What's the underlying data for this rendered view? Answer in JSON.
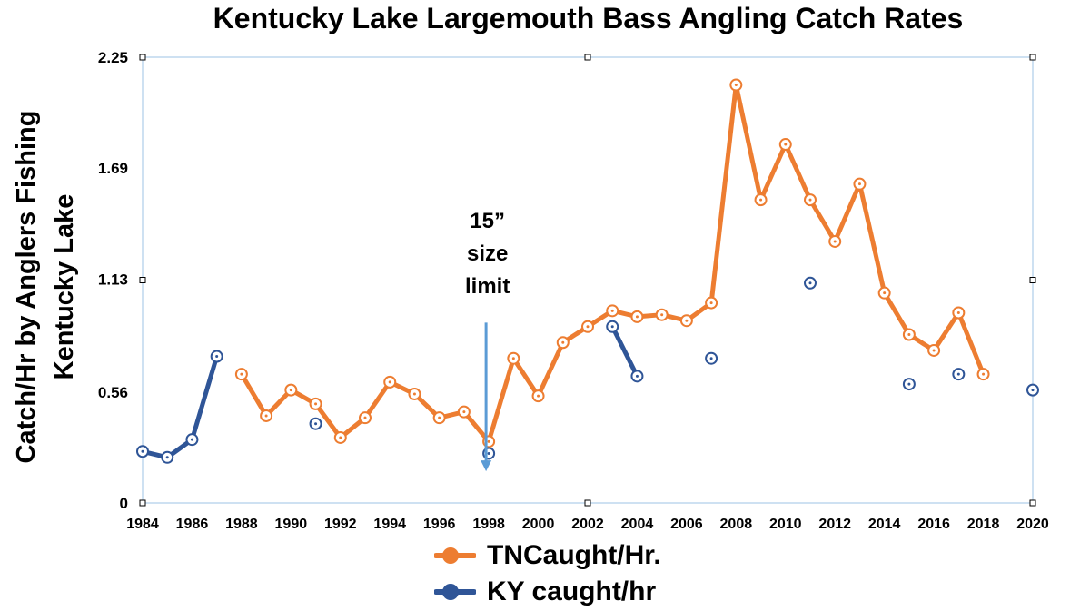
{
  "chart_data": {
    "type": "line",
    "title": "Kentucky Lake Largemouth Bass Angling Catch Rates",
    "ylabel_lines": [
      "Catch/Hr by Anglers Fishing",
      "Kentucky Lake"
    ],
    "xlabel": "",
    "xlim": [
      1984,
      2020
    ],
    "ylim": [
      0,
      2.25
    ],
    "yticks": [
      "0",
      "0.56",
      "1.13",
      "1.69",
      "2.25"
    ],
    "xticks": [
      "1984",
      "1986",
      "1988",
      "1990",
      "1992",
      "1994",
      "1996",
      "1998",
      "2000",
      "2002",
      "2004",
      "2006",
      "2008",
      "2010",
      "2012",
      "2014",
      "2016",
      "2018",
      "2020"
    ],
    "grid": false,
    "legend_position": "bottom",
    "series": [
      {
        "name": "TNCaught/Hr.",
        "color": "#ED7D31",
        "segments": [
          [
            [
              1988,
              0.65
            ],
            [
              1989,
              0.44
            ],
            [
              1990,
              0.57
            ],
            [
              1991,
              0.5
            ],
            [
              1992,
              0.33
            ],
            [
              1993,
              0.43
            ],
            [
              1994,
              0.61
            ],
            [
              1995,
              0.55
            ],
            [
              1996,
              0.43
            ],
            [
              1997,
              0.46
            ],
            [
              1998,
              0.31
            ],
            [
              1999,
              0.73
            ],
            [
              2000,
              0.54
            ],
            [
              2001,
              0.81
            ],
            [
              2002,
              0.89
            ],
            [
              2003,
              0.97
            ],
            [
              2004,
              0.94
            ],
            [
              2005,
              0.95
            ],
            [
              2006,
              0.92
            ],
            [
              2007,
              1.01
            ],
            [
              2008,
              2.11
            ],
            [
              2009,
              1.53
            ],
            [
              2010,
              1.81
            ],
            [
              2011,
              1.53
            ],
            [
              2012,
              1.32
            ],
            [
              2013,
              1.61
            ],
            [
              2014,
              1.06
            ],
            [
              2015,
              0.85
            ],
            [
              2016,
              0.77
            ],
            [
              2017,
              0.96
            ],
            [
              2018,
              0.65
            ]
          ]
        ]
      },
      {
        "name": "KY caught/hr",
        "color": "#2F5597",
        "segments": [
          [
            [
              1984,
              0.26
            ],
            [
              1985,
              0.23
            ],
            [
              1986,
              0.32
            ],
            [
              1987,
              0.74
            ]
          ],
          [
            [
              2003,
              0.89
            ],
            [
              2004,
              0.64
            ]
          ]
        ],
        "isolated_points": [
          [
            1991,
            0.4
          ],
          [
            1998,
            0.25
          ],
          [
            2007,
            0.73
          ],
          [
            2011,
            1.11
          ],
          [
            2015,
            0.6
          ],
          [
            2017,
            0.65
          ],
          [
            2020,
            0.57
          ]
        ]
      }
    ],
    "annotation": {
      "lines": [
        "15”",
        "size",
        "limit"
      ],
      "arrow_x": 1998,
      "arrow_from_y": 0.91,
      "arrow_to_y": 0.16,
      "arrow_color": "#5B9BD5"
    }
  }
}
